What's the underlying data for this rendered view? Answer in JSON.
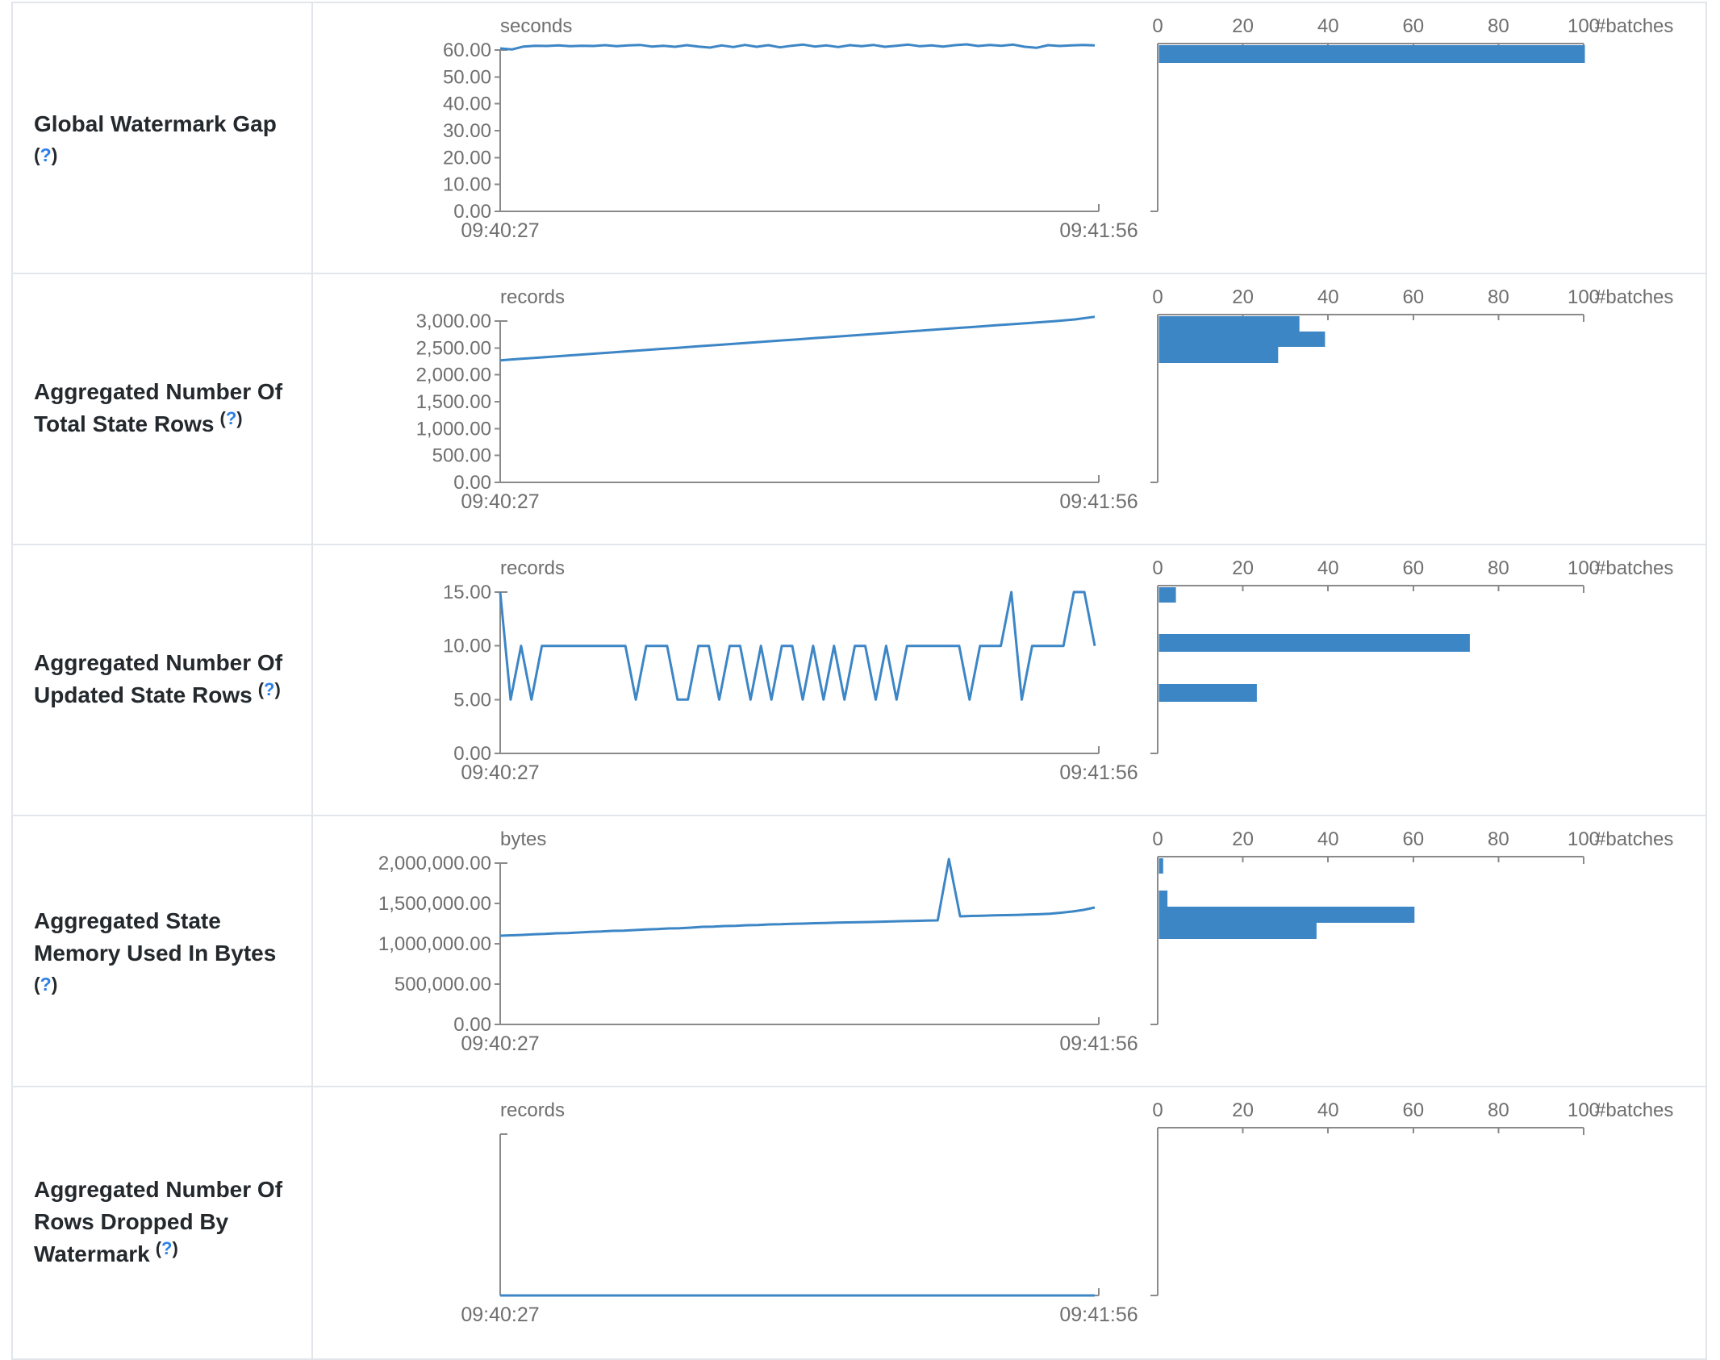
{
  "colors": {
    "accent": "#3d86c6",
    "axis_line": "#8a8a8a",
    "axis_text": "#6f6f6f",
    "title_text": "#24292e",
    "help_blue": "#2e80e8",
    "border": "#e2e6ea"
  },
  "help": {
    "open": "(",
    "mark": "?",
    "close": ")"
  },
  "time_axis": {
    "start_label": "09:40:27",
    "end_label": "09:41:56"
  },
  "batch_axis": {
    "tick_labels": [
      "0",
      "20",
      "40",
      "60",
      "80",
      "100"
    ],
    "unit": "#batches",
    "xlim": [
      0,
      100
    ]
  },
  "chart_data": [
    {
      "metric": "Global Watermark Gap",
      "title_lines": [
        "Global Watermark Gap"
      ],
      "help_inline": false,
      "timeline": {
        "type": "line",
        "unit": "seconds",
        "x_start": "09:40:27",
        "x_end": "09:41:56",
        "ylim": [
          0,
          60
        ],
        "ytick_labels": [
          "0.00",
          "10.00",
          "20.00",
          "30.00",
          "40.00",
          "50.00",
          "60.00"
        ],
        "values": [
          60.6,
          60.2,
          61.3,
          61.6,
          61.5,
          61.7,
          61.4,
          61.6,
          61.5,
          61.8,
          61.4,
          61.7,
          61.9,
          61.3,
          61.6,
          61.2,
          61.8,
          61.3,
          60.9,
          61.7,
          61.1,
          61.9,
          61.2,
          61.8,
          61.0,
          61.6,
          62.0,
          61.3,
          61.7,
          61.1,
          61.8,
          61.4,
          61.9,
          61.2,
          61.6,
          62.0,
          61.4,
          61.7,
          61.3,
          61.8,
          62.1,
          61.5,
          61.9,
          61.6,
          62.0,
          61.2,
          60.8,
          61.8,
          61.5,
          61.7,
          61.9,
          61.7
        ]
      },
      "histogram": {
        "type": "bar",
        "orientation": "horizontal",
        "unit": "#batches",
        "xlim": [
          0,
          100
        ],
        "bars": [
          {
            "count": 100,
            "y": 52,
            "h": 22
          }
        ]
      }
    },
    {
      "metric": "Aggregated Number Of Total State Rows",
      "title_lines": [
        "Aggregated Number Of",
        "Total State Rows"
      ],
      "help_inline": true,
      "timeline": {
        "type": "line",
        "unit": "records",
        "x_start": "09:40:27",
        "x_end": "09:41:56",
        "ylim": [
          0,
          3000
        ],
        "ytick_labels": [
          "0.00",
          "500.00",
          "1,000.00",
          "1,500.00",
          "2,000.00",
          "2,500.00",
          "3,000.00"
        ],
        "values": [
          2270,
          2296,
          2322,
          2348,
          2374,
          2400,
          2426,
          2452,
          2478,
          2504,
          2530,
          2556,
          2582,
          2608,
          2634,
          2660,
          2686,
          2712,
          2738,
          2764,
          2790,
          2816,
          2842,
          2868,
          2894,
          2920,
          2946,
          2972,
          2998,
          3030,
          3080
        ]
      },
      "histogram": {
        "type": "bar",
        "orientation": "horizontal",
        "unit": "#batches",
        "xlim": [
          0,
          100
        ],
        "bars": [
          {
            "count": 33,
            "y": 52,
            "h": 19
          },
          {
            "count": 39,
            "y": 71,
            "h": 19
          },
          {
            "count": 28,
            "y": 90,
            "h": 20
          }
        ]
      }
    },
    {
      "metric": "Aggregated Number Of Updated State Rows",
      "title_lines": [
        "Aggregated Number Of",
        "Updated State Rows"
      ],
      "help_inline": true,
      "timeline": {
        "type": "line",
        "unit": "records",
        "x_start": "09:40:27",
        "x_end": "09:41:56",
        "ylim": [
          0,
          15
        ],
        "ytick_labels": [
          "0.00",
          "5.00",
          "10.00",
          "15.00"
        ],
        "values": [
          15,
          5,
          10,
          5,
          10,
          10,
          10,
          10,
          10,
          10,
          10,
          10,
          10,
          5,
          10,
          10,
          10,
          5,
          5,
          10,
          10,
          5,
          10,
          10,
          5,
          10,
          5,
          10,
          10,
          5,
          10,
          5,
          10,
          5,
          10,
          10,
          5,
          10,
          5,
          10,
          10,
          10,
          10,
          10,
          10,
          5,
          10,
          10,
          10,
          15,
          5,
          10,
          10,
          10,
          10,
          15,
          15,
          10
        ]
      },
      "histogram": {
        "type": "bar",
        "orientation": "horizontal",
        "unit": "#batches",
        "xlim": [
          0,
          100
        ],
        "bars": [
          {
            "count": 4,
            "y": 52,
            "h": 19
          },
          {
            "count": 73,
            "y": 110,
            "h": 22
          },
          {
            "count": 23,
            "y": 172,
            "h": 22
          }
        ]
      }
    },
    {
      "metric": "Aggregated State Memory Used In Bytes",
      "title_lines": [
        "Aggregated State",
        "Memory Used In Bytes"
      ],
      "help_inline": false,
      "timeline": {
        "type": "line",
        "unit": "bytes",
        "x_start": "09:40:27",
        "x_end": "09:41:56",
        "ylim": [
          0,
          2000000
        ],
        "ytick_labels": [
          "0.00",
          "500,000.00",
          "1,000,000.00",
          "1,500,000.00",
          "2,000,000.00"
        ],
        "values": [
          1100000,
          1105000,
          1110000,
          1118000,
          1122000,
          1130000,
          1133000,
          1140000,
          1148000,
          1152000,
          1160000,
          1163000,
          1170000,
          1178000,
          1182000,
          1190000,
          1193000,
          1200000,
          1210000,
          1213000,
          1220000,
          1222000,
          1230000,
          1232000,
          1240000,
          1242000,
          1248000,
          1250000,
          1255000,
          1258000,
          1262000,
          1265000,
          1268000,
          1270000,
          1274000,
          1278000,
          1281000,
          1284000,
          1287000,
          1290000,
          2050000,
          1340000,
          1345000,
          1348000,
          1352000,
          1355000,
          1358000,
          1362000,
          1366000,
          1372000,
          1385000,
          1400000,
          1420000,
          1450000
        ]
      },
      "histogram": {
        "type": "bar",
        "orientation": "horizontal",
        "unit": "#batches",
        "xlim": [
          0,
          100
        ],
        "bars": [
          {
            "count": 1,
            "y": 52,
            "h": 19
          },
          {
            "count": 2,
            "y": 92,
            "h": 20
          },
          {
            "count": 60,
            "y": 112,
            "h": 20
          },
          {
            "count": 37,
            "y": 132,
            "h": 20
          }
        ]
      }
    },
    {
      "metric": "Aggregated Number Of Rows Dropped By Watermark",
      "title_lines": [
        "Aggregated Number Of",
        "Rows Dropped By",
        "Watermark"
      ],
      "help_inline": true,
      "timeline": {
        "type": "line",
        "unit": "records",
        "x_start": "09:40:27",
        "x_end": "09:41:56",
        "ylim": [
          0,
          0
        ],
        "ytick_labels": [],
        "values": [
          0,
          0,
          0,
          0,
          0,
          0,
          0,
          0,
          0,
          0
        ]
      },
      "histogram": {
        "type": "bar",
        "orientation": "horizontal",
        "unit": "#batches",
        "xlim": [
          0,
          100
        ],
        "bars": []
      }
    }
  ]
}
